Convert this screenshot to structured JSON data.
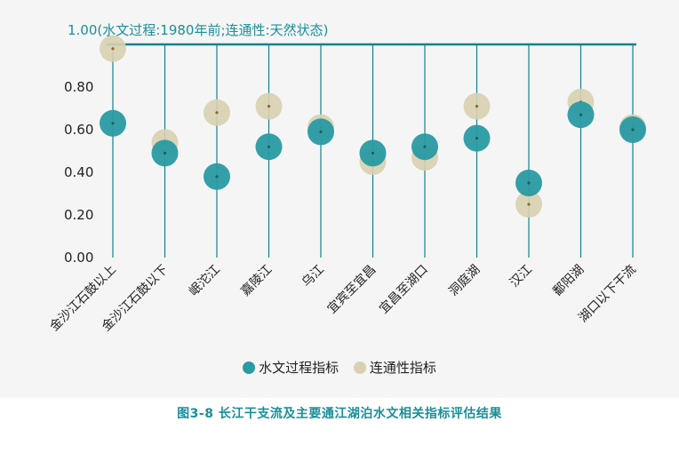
{
  "chart_data": {
    "type": "scatter",
    "top_label": "1.00(水文过程:1980年前;连通性:天然状态)",
    "categories": [
      "金沙江石鼓以上",
      "金沙江石鼓以下",
      "岷沱江",
      "嘉陵江",
      "乌江",
      "宜宾至宜昌",
      "宜昌至湖口",
      "洞庭湖",
      "汉江",
      "鄱阳湖",
      "湖口以下干流"
    ],
    "y_ticks": [
      "0.00",
      "0.20",
      "0.40",
      "0.60",
      "0.80"
    ],
    "ylim": [
      0,
      1
    ],
    "series": [
      {
        "name": "水文过程指标",
        "color": "#2a9aa3",
        "values": [
          0.63,
          0.49,
          0.38,
          0.52,
          0.59,
          0.49,
          0.52,
          0.56,
          0.35,
          0.67,
          0.6
        ]
      },
      {
        "name": "连通性指标",
        "color": "#d8d0b0",
        "values": [
          0.98,
          0.54,
          0.68,
          0.71,
          0.61,
          0.45,
          0.47,
          0.71,
          0.25,
          0.73,
          0.61
        ]
      }
    ]
  },
  "caption": "图3-8  长江干支流及主要通江湖泊水文相关指标评估结果"
}
